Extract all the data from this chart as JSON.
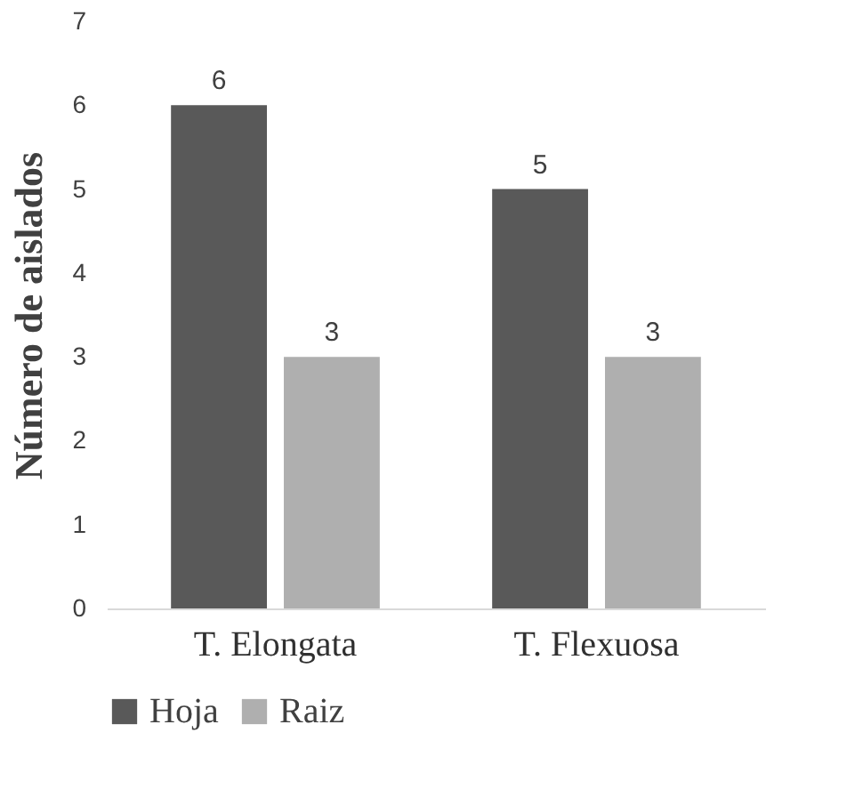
{
  "chart_data": {
    "type": "bar",
    "ylabel": "Número de aislados",
    "categories": [
      "T. Elongata",
      "T. Flexuosa"
    ],
    "series": [
      {
        "name": "Hoja",
        "color": "#595959",
        "values": [
          6,
          5
        ]
      },
      {
        "name": "Raiz",
        "color": "#afafaf",
        "values": [
          3,
          3
        ]
      }
    ],
    "ylim": [
      0,
      7
    ],
    "yticks": [
      0,
      1,
      2,
      3,
      4,
      5,
      6,
      7
    ],
    "grid": false,
    "legend": "bottom",
    "data_labels": true
  }
}
